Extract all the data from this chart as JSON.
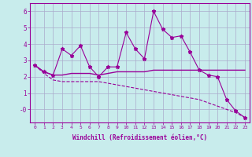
{
  "title": "",
  "xlabel": "Windchill (Refroidissement éolien,°C)",
  "ylabel": "",
  "background_color": "#c8ecec",
  "line_color": "#990099",
  "grid_color": "#aaaacc",
  "x_values": [
    0,
    1,
    2,
    3,
    4,
    5,
    6,
    7,
    8,
    9,
    10,
    11,
    12,
    13,
    14,
    15,
    16,
    17,
    18,
    19,
    20,
    21,
    22,
    23
  ],
  "y_main": [
    2.7,
    2.3,
    2.1,
    3.7,
    3.3,
    3.9,
    2.6,
    2.0,
    2.6,
    2.6,
    4.7,
    3.7,
    3.1,
    6.0,
    4.9,
    4.4,
    4.5,
    3.5,
    2.4,
    2.1,
    2.0,
    0.6,
    -0.1,
    -0.5
  ],
  "y_line2": [
    2.7,
    2.3,
    2.1,
    2.1,
    2.2,
    2.2,
    2.2,
    2.1,
    2.2,
    2.3,
    2.3,
    2.3,
    2.3,
    2.4,
    2.4,
    2.4,
    2.4,
    2.4,
    2.4,
    2.4,
    2.4,
    2.4,
    2.4,
    2.4
  ],
  "y_line3": [
    2.7,
    2.2,
    1.8,
    1.7,
    1.7,
    1.7,
    1.7,
    1.7,
    1.6,
    1.5,
    1.4,
    1.3,
    1.2,
    1.1,
    1.0,
    0.9,
    0.8,
    0.7,
    0.6,
    0.4,
    0.2,
    0.0,
    -0.2,
    -0.5
  ],
  "ylim": [
    -0.8,
    6.5
  ],
  "xlim": [
    -0.5,
    23.5
  ],
  "yticks": [
    0,
    1,
    2,
    3,
    4,
    5,
    6
  ],
  "ytick_labels": [
    "-0",
    "1",
    "2",
    "3",
    "4",
    "5",
    "6"
  ],
  "xticks": [
    0,
    1,
    2,
    3,
    4,
    5,
    6,
    7,
    8,
    9,
    10,
    11,
    12,
    13,
    14,
    15,
    16,
    17,
    18,
    19,
    20,
    21,
    22,
    23
  ]
}
